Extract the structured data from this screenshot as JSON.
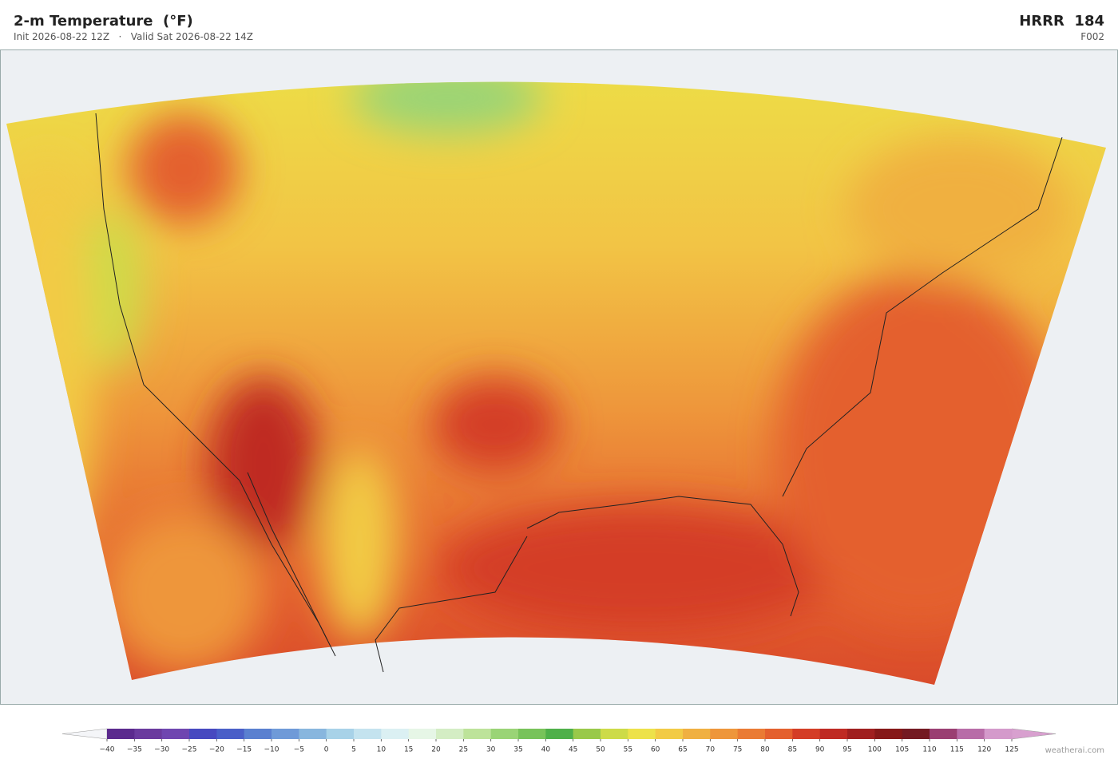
{
  "header": {
    "title": "2-m Temperature  (°F)",
    "subtitle": "Init 2026-08-22 12Z   ·   Valid Sat 2026-08-22 14Z",
    "model": "HRRR  184",
    "forecast_hour": "F002"
  },
  "colorbar": {
    "ticks": [
      {
        "value": -40,
        "label": "−40"
      },
      {
        "value": -35,
        "label": "−35"
      },
      {
        "value": -30,
        "label": "−30"
      },
      {
        "value": -25,
        "label": "−25"
      },
      {
        "value": -20,
        "label": "−20"
      },
      {
        "value": -15,
        "label": "−15"
      },
      {
        "value": -10,
        "label": "−10"
      },
      {
        "value": -5,
        "label": "−5"
      },
      0,
      5,
      10,
      15,
      20,
      25,
      30,
      35,
      40,
      45,
      50,
      55,
      60,
      65,
      70,
      75,
      80,
      85,
      90,
      95,
      100,
      105,
      110,
      115,
      120,
      125
    ],
    "colors": [
      "#5b2a8e",
      "#6a3a9e",
      "#6f46b0",
      "#4749c0",
      "#4a5fc8",
      "#5a80d0",
      "#6f9ad8",
      "#88b6de",
      "#a8d2e8",
      "#c4e3ef",
      "#dbf0f3",
      "#e6f6e6",
      "#d4edc4",
      "#bde39a",
      "#9ad476",
      "#78c35a",
      "#4fb04a",
      "#99c94a",
      "#cddb48",
      "#ede24a",
      "#f2cb45",
      "#f0b041",
      "#ee963b",
      "#ea7b34",
      "#e4602e",
      "#d43d26",
      "#bf2a23",
      "#a01f1f",
      "#861818",
      "#741a22",
      "#9a3f72",
      "#b86da8",
      "#d49acb"
    ],
    "under_color": "#f4f5f8",
    "over_color": "#d8a0cf"
  },
  "credit": "weatherai.com"
}
